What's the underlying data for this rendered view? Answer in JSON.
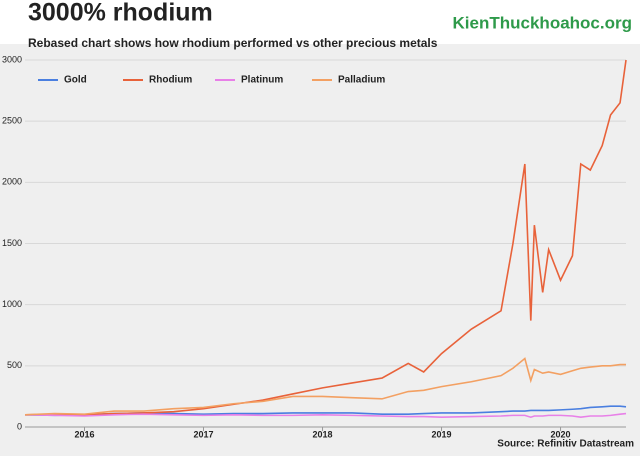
{
  "chart_data": {
    "type": "line",
    "title": "3000% rhodium",
    "subtitle": "Rebased chart shows how rhodium performed vs other precious metals",
    "source": "Source: Refinitiv Datastream",
    "watermark": "KienThuckhoahoc.org",
    "x": [
      2015.5,
      2015.75,
      2016,
      2016.25,
      2016.5,
      2016.75,
      2017,
      2017.25,
      2017.5,
      2017.75,
      2018,
      2018.25,
      2018.5,
      2018.72,
      2018.85,
      2019,
      2019.25,
      2019.5,
      2019.6,
      2019.7,
      2019.75,
      2019.78,
      2019.85,
      2019.9,
      2020,
      2020.1,
      2020.17,
      2020.25,
      2020.35,
      2020.42,
      2020.5,
      2020.55
    ],
    "series": [
      {
        "name": "Gold",
        "color": "#4a7fe0",
        "values": [
          100,
          95,
          100,
          110,
          115,
          110,
          105,
          110,
          110,
          115,
          115,
          115,
          105,
          105,
          110,
          115,
          115,
          125,
          130,
          130,
          135,
          135,
          135,
          135,
          140,
          145,
          150,
          160,
          165,
          170,
          170,
          165
        ]
      },
      {
        "name": "Rhodium",
        "color": "#e8623a",
        "values": [
          100,
          105,
          100,
          110,
          115,
          125,
          150,
          185,
          220,
          270,
          320,
          360,
          400,
          520,
          450,
          600,
          800,
          950,
          1500,
          2150,
          870,
          1650,
          1100,
          1450,
          1200,
          1400,
          2150,
          2100,
          2300,
          2550,
          2650,
          3000
        ]
      },
      {
        "name": "Platinum",
        "color": "#e880e8",
        "values": [
          100,
          95,
          90,
          100,
          105,
          100,
          95,
          100,
          95,
          95,
          100,
          95,
          90,
          85,
          85,
          80,
          85,
          90,
          95,
          95,
          80,
          90,
          90,
          95,
          95,
          90,
          80,
          90,
          90,
          95,
          105,
          110
        ]
      },
      {
        "name": "Palladium",
        "color": "#f3a062",
        "values": [
          100,
          110,
          105,
          130,
          130,
          150,
          160,
          190,
          210,
          250,
          250,
          240,
          230,
          290,
          300,
          330,
          370,
          420,
          480,
          560,
          380,
          470,
          440,
          450,
          430,
          460,
          480,
          490,
          500,
          500,
          510,
          510
        ]
      }
    ],
    "xlim": [
      2015.5,
      2020.55
    ],
    "xticks": [
      2016,
      2017,
      2018,
      2019,
      2020
    ],
    "ylim": [
      0,
      3000
    ],
    "yticks": [
      0,
      500,
      1000,
      1500,
      2000,
      2500,
      3000
    ],
    "grid": true,
    "legend": "top-left"
  }
}
